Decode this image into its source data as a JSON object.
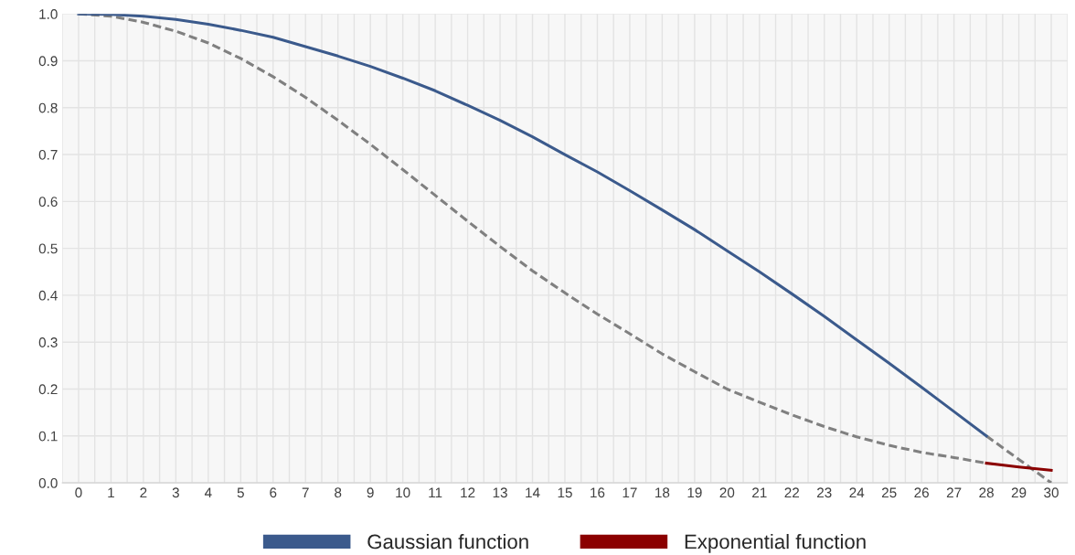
{
  "chart_data": {
    "type": "line",
    "categories": [
      "0",
      "1",
      "2",
      "3",
      "4",
      "5",
      "6",
      "7",
      "8",
      "9",
      "10",
      "11",
      "12",
      "13",
      "14",
      "15",
      "16",
      "17",
      "18",
      "19",
      "20",
      "21",
      "22",
      "23",
      "24",
      "25",
      "26",
      "27",
      "28",
      "29",
      "30"
    ],
    "series": [
      {
        "color": "#808080",
        "line_style": "dashed",
        "values": [
          1.0,
          0.995,
          0.982,
          0.963,
          0.938,
          0.905,
          0.866,
          0.822,
          0.773,
          0.722,
          0.668,
          0.613,
          0.558,
          0.504,
          0.452,
          0.405,
          0.36,
          0.318,
          0.275,
          0.237,
          0.2,
          0.172,
          0.145,
          0.12,
          0.098,
          0.08,
          0.065,
          0.054,
          0.042,
          null,
          null
        ]
      },
      {
        "color": "#808080",
        "line_style": "dashed",
        "values": [
          null,
          null,
          null,
          null,
          null,
          null,
          null,
          null,
          null,
          null,
          null,
          null,
          null,
          null,
          null,
          null,
          null,
          null,
          null,
          null,
          null,
          null,
          null,
          null,
          null,
          null,
          null,
          null,
          0.1,
          0.05,
          0.0
        ]
      },
      {
        "name": "Gaussian function",
        "color": "#3b5a8c",
        "line_style": "solid",
        "values": [
          1.0,
          0.999,
          0.995,
          0.988,
          0.978,
          0.965,
          0.95,
          0.93,
          0.91,
          0.888,
          0.863,
          0.836,
          0.805,
          0.773,
          0.738,
          0.7,
          0.663,
          0.623,
          0.582,
          0.54,
          0.495,
          0.45,
          0.403,
          0.355,
          0.305,
          0.255,
          0.204,
          0.152,
          0.1,
          null,
          null
        ]
      },
      {
        "name": "Exponential function",
        "color": "#8b0000",
        "line_style": "solid",
        "values": [
          null,
          null,
          null,
          null,
          null,
          null,
          null,
          null,
          null,
          null,
          null,
          null,
          null,
          null,
          null,
          null,
          null,
          null,
          null,
          null,
          null,
          null,
          null,
          null,
          null,
          null,
          null,
          null,
          0.042,
          0.034,
          0.027
        ]
      }
    ],
    "ylim": [
      0,
      1
    ],
    "yticks": [
      {
        "value": 0,
        "label": "0.0"
      },
      {
        "value": 0.1,
        "label": "0.1"
      },
      {
        "value": 0.2,
        "label": "0.2"
      },
      {
        "value": 0.3,
        "label": "0.3"
      },
      {
        "value": 0.4,
        "label": "0.4"
      },
      {
        "value": 0.5,
        "label": "0.5"
      },
      {
        "value": 0.6,
        "label": "0.6"
      },
      {
        "value": 0.7,
        "label": "0.7"
      },
      {
        "value": 0.8,
        "label": "0.8"
      },
      {
        "value": 0.9,
        "label": "0.9"
      },
      {
        "value": 1,
        "label": "1.0"
      }
    ],
    "grid": true,
    "legend": "bottom",
    "marker": "none"
  }
}
